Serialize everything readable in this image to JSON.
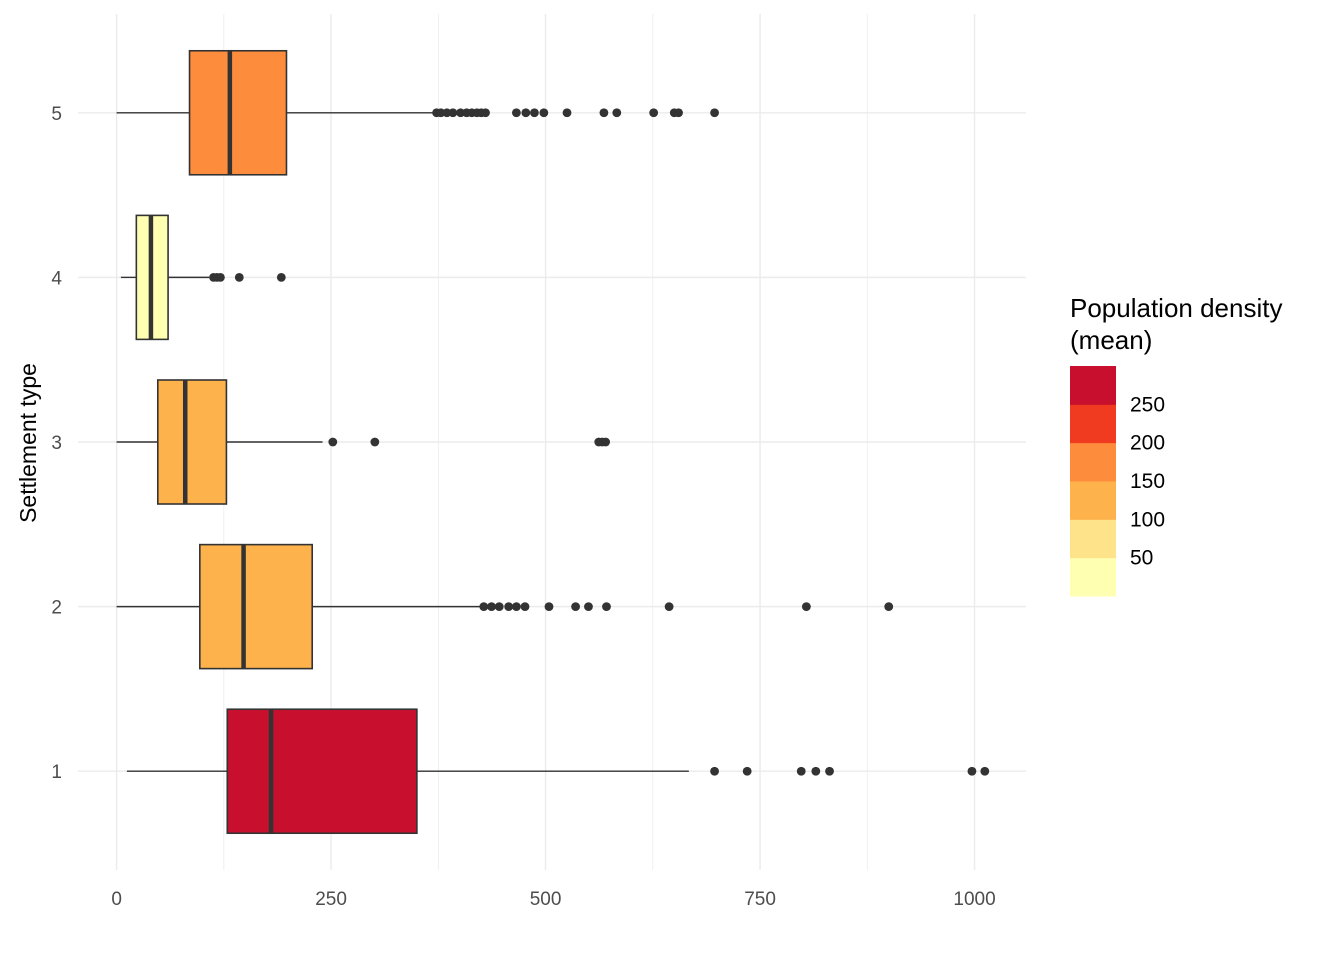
{
  "chart_data": {
    "type": "boxplot",
    "orientation": "horizontal",
    "title": "",
    "xlabel": "",
    "ylabel": "Settlement type",
    "xlim": [
      -45,
      1060
    ],
    "x_ticks": [
      0,
      250,
      500,
      750,
      1000
    ],
    "x_tick_labels": [
      "0",
      "250",
      "500",
      "750",
      "1000"
    ],
    "grid": true,
    "categories": [
      "1",
      "2",
      "3",
      "4",
      "5"
    ],
    "boxes": [
      {
        "category": "1",
        "whisker_low": 12,
        "q1": 129,
        "median": 180,
        "q3": 350,
        "whisker_high": 667,
        "mean_density": 275,
        "outliers": [
          697,
          735,
          798,
          815,
          831,
          997,
          1012
        ]
      },
      {
        "category": "2",
        "whisker_low": 0,
        "q1": 97,
        "median": 148,
        "q3": 228,
        "whisker_high": 423,
        "mean_density": 160,
        "outliers": [
          428,
          437,
          446,
          457,
          466,
          476,
          504,
          535,
          550,
          571,
          644,
          804,
          900
        ]
      },
      {
        "category": "3",
        "whisker_low": 0,
        "q1": 48,
        "median": 80,
        "q3": 128,
        "whisker_high": 240,
        "mean_density": 120,
        "outliers": [
          252,
          301,
          562,
          566,
          570
        ]
      },
      {
        "category": "4",
        "whisker_low": 5,
        "q1": 23,
        "median": 40,
        "q3": 60,
        "whisker_high": 108,
        "mean_density": 40,
        "outliers": [
          113,
          117,
          121,
          143,
          192
        ]
      },
      {
        "category": "5",
        "whisker_low": 0,
        "q1": 85,
        "median": 132,
        "q3": 198,
        "whisker_high": 370,
        "mean_density": 165,
        "outliers": [
          373,
          378,
          385,
          392,
          401,
          408,
          414,
          420,
          425,
          430,
          466,
          477,
          487,
          498,
          525,
          568,
          583,
          626,
          650,
          655,
          697
        ]
      }
    ],
    "legend": {
      "title_line1": "Population density",
      "title_line2": "(mean)",
      "position": "right",
      "colors": [
        "#ffffb2",
        "#fee38b",
        "#feb24c",
        "#fd8d3c",
        "#f03b20",
        "#c8102e"
      ],
      "labels": [
        "50",
        "100",
        "150",
        "200",
        "250"
      ]
    },
    "colors": {
      "grid": "#ebebeb",
      "box_stroke": "#333333",
      "point": "#333333"
    }
  }
}
